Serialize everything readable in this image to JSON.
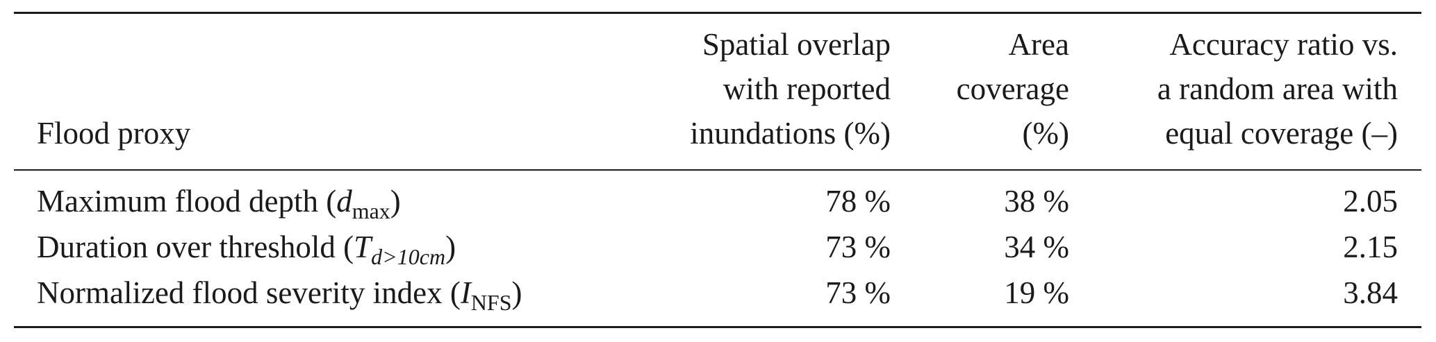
{
  "table": {
    "header": [
      [
        "Flood proxy"
      ],
      [
        "Spatial overlap",
        "with reported",
        "inundations (%)"
      ],
      [
        "Area",
        "coverage",
        "(%)"
      ],
      [
        "Accuracy ratio vs.",
        "a random area with",
        "equal coverage (–)"
      ]
    ],
    "rows": [
      [
        {
          "prefix": "Maximum flood depth (",
          "symbol": "d",
          "sub": "max",
          "suffix": ")"
        },
        "78 %",
        "38 %",
        2.05
      ],
      [
        {
          "prefix": "Duration over threshold (",
          "symbol": "T",
          "sub": "d>10cm",
          "suffix": ")"
        },
        "73 %",
        "34 %",
        2.15
      ],
      [
        {
          "prefix": "Normalized flood severity index (",
          "symbol": "I",
          "sub": "NFS",
          "suffix": ")"
        },
        "73 %",
        "19 %",
        3.84
      ]
    ]
  }
}
